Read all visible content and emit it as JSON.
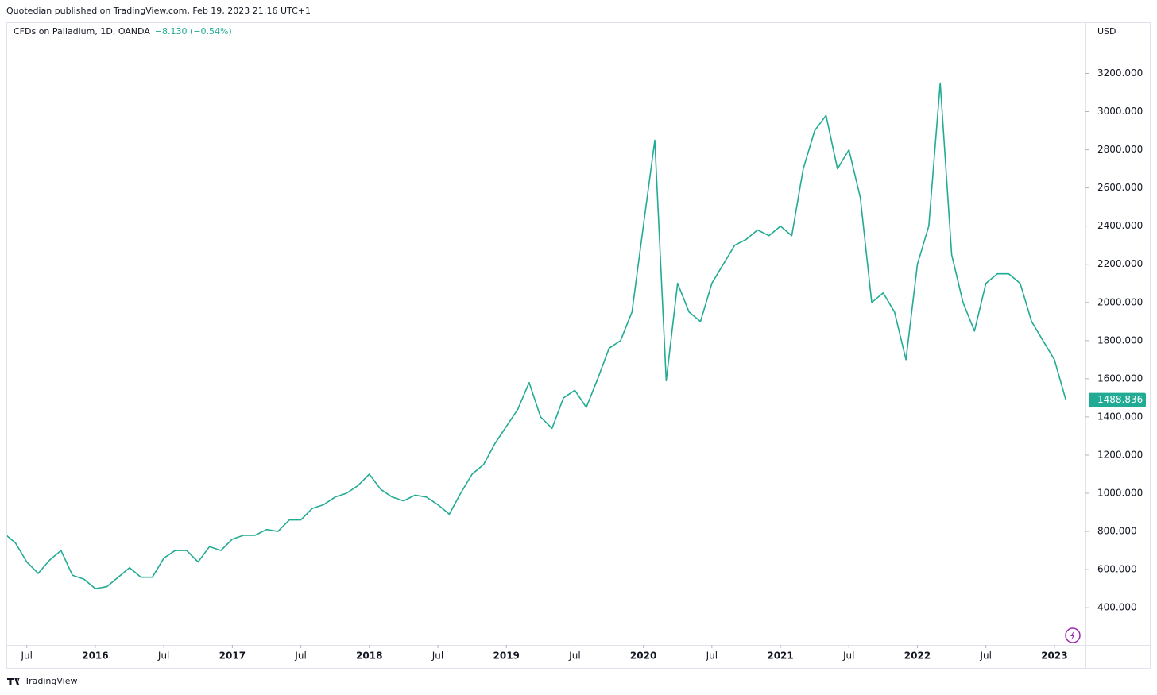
{
  "chart_data": {
    "type": "line",
    "header": "Quotedian published on TradingView.com, Feb 19, 2023 21:16 UTC+1",
    "title": "CFDs on Palladium, 1D, OANDA",
    "change": "−8.130 (−0.54%)",
    "currency": "USD",
    "brand": "TradingView",
    "last_price": 1488.836,
    "x": [
      "2015-05",
      "2015-06",
      "2015-07",
      "2015-08",
      "2015-09",
      "2015-10",
      "2015-11",
      "2015-12",
      "2016-01",
      "2016-02",
      "2016-03",
      "2016-04",
      "2016-05",
      "2016-06",
      "2016-07",
      "2016-08",
      "2016-09",
      "2016-10",
      "2016-11",
      "2016-12",
      "2017-01",
      "2017-02",
      "2017-03",
      "2017-04",
      "2017-05",
      "2017-06",
      "2017-07",
      "2017-08",
      "2017-09",
      "2017-10",
      "2017-11",
      "2017-12",
      "2018-01",
      "2018-02",
      "2018-03",
      "2018-04",
      "2018-05",
      "2018-06",
      "2018-07",
      "2018-08",
      "2018-09",
      "2018-10",
      "2018-11",
      "2018-12",
      "2019-01",
      "2019-02",
      "2019-03",
      "2019-04",
      "2019-05",
      "2019-06",
      "2019-07",
      "2019-08",
      "2019-09",
      "2019-10",
      "2019-11",
      "2019-12",
      "2020-01",
      "2020-02",
      "2020-03",
      "2020-04",
      "2020-05",
      "2020-06",
      "2020-07",
      "2020-08",
      "2020-09",
      "2020-10",
      "2020-11",
      "2020-12",
      "2021-01",
      "2021-02",
      "2021-03",
      "2021-04",
      "2021-05",
      "2021-06",
      "2021-07",
      "2021-08",
      "2021-09",
      "2021-10",
      "2021-11",
      "2021-12",
      "2022-01",
      "2022-02",
      "2022-03",
      "2022-04",
      "2022-05",
      "2022-06",
      "2022-07",
      "2022-08",
      "2022-09",
      "2022-10",
      "2022-11",
      "2022-12",
      "2023-01",
      "2023-02"
    ],
    "series": [
      {
        "name": "CFDs on Palladium, 1D, OANDA",
        "color": "#22ab94",
        "values": [
          790,
          740,
          640,
          580,
          650,
          700,
          570,
          550,
          500,
          510,
          560,
          610,
          560,
          560,
          660,
          700,
          700,
          640,
          720,
          700,
          760,
          780,
          780,
          810,
          800,
          860,
          860,
          920,
          940,
          980,
          1000,
          1040,
          1100,
          1020,
          980,
          960,
          990,
          980,
          940,
          890,
          1000,
          1100,
          1150,
          1260,
          1350,
          1440,
          1580,
          1400,
          1340,
          1500,
          1540,
          1450,
          1600,
          1760,
          1800,
          1950,
          2400,
          2850,
          1590,
          2100,
          1950,
          1900,
          2100,
          2200,
          2300,
          2330,
          2380,
          2350,
          2400,
          2350,
          2700,
          2900,
          2980,
          2700,
          2800,
          2550,
          2000,
          2050,
          1950,
          1700,
          2200,
          2400,
          3150,
          2250,
          2000,
          1850,
          2100,
          2150,
          2150,
          2100,
          1900,
          1800,
          1700,
          1489
        ]
      }
    ],
    "xlim": [
      "2015-05",
      "2023-04"
    ],
    "xticks": [
      {
        "value": "2015-07",
        "label": "Jul"
      },
      {
        "value": "2016-01",
        "label": "2016"
      },
      {
        "value": "2016-07",
        "label": "Jul"
      },
      {
        "value": "2017-01",
        "label": "2017"
      },
      {
        "value": "2017-07",
        "label": "Jul"
      },
      {
        "value": "2018-01",
        "label": "2018"
      },
      {
        "value": "2018-07",
        "label": "Jul"
      },
      {
        "value": "2019-01",
        "label": "2019"
      },
      {
        "value": "2019-07",
        "label": "Jul"
      },
      {
        "value": "2020-01",
        "label": "2020"
      },
      {
        "value": "2020-07",
        "label": "Jul"
      },
      {
        "value": "2021-01",
        "label": "2021"
      },
      {
        "value": "2021-07",
        "label": "Jul"
      },
      {
        "value": "2022-01",
        "label": "2022"
      },
      {
        "value": "2022-07",
        "label": "Jul"
      },
      {
        "value": "2023-01",
        "label": "2023"
      }
    ],
    "ylim": [
      205,
      3460
    ],
    "yticks": [
      {
        "value": 400,
        "label": "400.000"
      },
      {
        "value": 600,
        "label": "600.000"
      },
      {
        "value": 800,
        "label": "800.000"
      },
      {
        "value": 1000,
        "label": "1000.000"
      },
      {
        "value": 1200,
        "label": "1200.000"
      },
      {
        "value": 1400,
        "label": "1400.000"
      },
      {
        "value": 1600,
        "label": "1600.000"
      },
      {
        "value": 1800,
        "label": "1800.000"
      },
      {
        "value": 2000,
        "label": "2000.000"
      },
      {
        "value": 2200,
        "label": "2200.000"
      },
      {
        "value": 2400,
        "label": "2400.000"
      },
      {
        "value": 2600,
        "label": "2600.000"
      },
      {
        "value": 2800,
        "label": "2800.000"
      },
      {
        "value": 3000,
        "label": "3000.000"
      },
      {
        "value": 3200,
        "label": "3200.000"
      }
    ],
    "grid": false
  }
}
